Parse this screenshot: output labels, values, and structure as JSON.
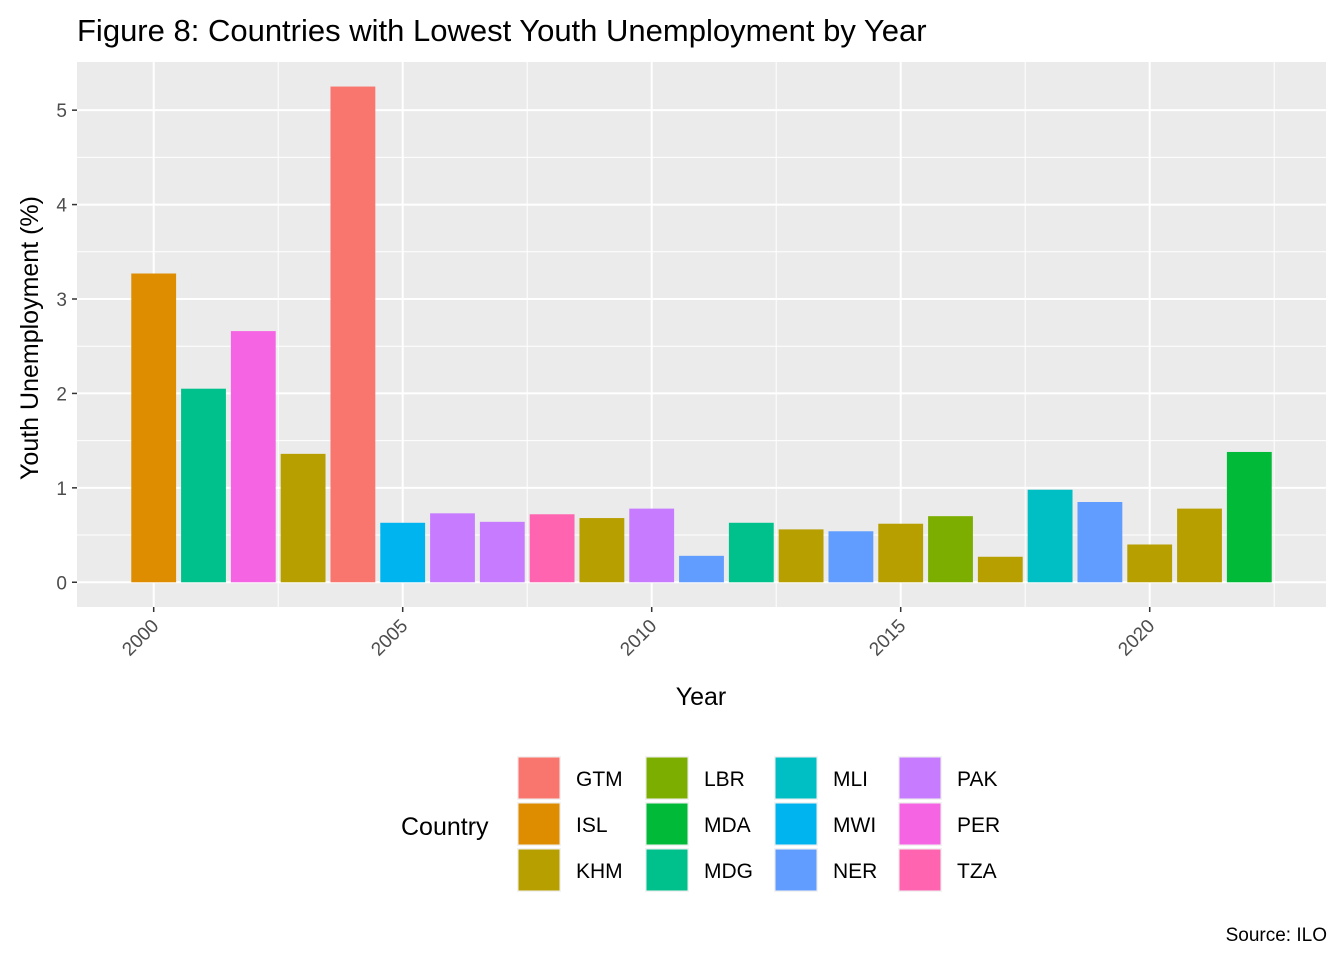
{
  "chart_data": {
    "type": "bar",
    "title": "Figure 8: Countries with Lowest Youth Unemployment by Year",
    "xlabel": "Year",
    "ylabel": "Youth Unemployment (%)",
    "caption": "Source: ILO",
    "xlim": [
      1998.46,
      2023.54
    ],
    "ylim": [
      -0.262,
      5.51
    ],
    "x_ticks": [
      2000,
      2005,
      2010,
      2015,
      2020
    ],
    "y_ticks": [
      0,
      1,
      2,
      3,
      4,
      5
    ],
    "grid": true,
    "legend_title": "Country",
    "legend_position": "bottom",
    "legend": [
      {
        "code": "GTM",
        "color": "#F8766D"
      },
      {
        "code": "ISL",
        "color": "#DE8C00"
      },
      {
        "code": "KHM",
        "color": "#B79F00"
      },
      {
        "code": "LBR",
        "color": "#7CAE00"
      },
      {
        "code": "MDA",
        "color": "#00BA38"
      },
      {
        "code": "MDG",
        "color": "#00C08B"
      },
      {
        "code": "MLI",
        "color": "#00BFC4"
      },
      {
        "code": "MWI",
        "color": "#00B4F0"
      },
      {
        "code": "NER",
        "color": "#619CFF"
      },
      {
        "code": "PAK",
        "color": "#C77CFF"
      },
      {
        "code": "PER",
        "color": "#F564E3"
      },
      {
        "code": "TZA",
        "color": "#FF64B0"
      }
    ],
    "bars": [
      {
        "year": 2000,
        "country": "ISL",
        "value": 3.27
      },
      {
        "year": 2001,
        "country": "MDG",
        "value": 2.05
      },
      {
        "year": 2002,
        "country": "PER",
        "value": 2.66
      },
      {
        "year": 2003,
        "country": "KHM",
        "value": 1.36
      },
      {
        "year": 2004,
        "country": "GTM",
        "value": 5.25
      },
      {
        "year": 2005,
        "country": "MWI",
        "value": 0.63
      },
      {
        "year": 2006,
        "country": "PAK",
        "value": 0.73
      },
      {
        "year": 2007,
        "country": "PAK",
        "value": 0.64
      },
      {
        "year": 2008,
        "country": "TZA",
        "value": 0.72
      },
      {
        "year": 2009,
        "country": "KHM",
        "value": 0.68
      },
      {
        "year": 2010,
        "country": "PAK",
        "value": 0.78
      },
      {
        "year": 2011,
        "country": "NER",
        "value": 0.28
      },
      {
        "year": 2012,
        "country": "MDG",
        "value": 0.63
      },
      {
        "year": 2013,
        "country": "KHM",
        "value": 0.56
      },
      {
        "year": 2014,
        "country": "NER",
        "value": 0.54
      },
      {
        "year": 2015,
        "country": "KHM",
        "value": 0.62
      },
      {
        "year": 2016,
        "country": "LBR",
        "value": 0.7
      },
      {
        "year": 2017,
        "country": "KHM",
        "value": 0.27
      },
      {
        "year": 2018,
        "country": "MLI",
        "value": 0.98
      },
      {
        "year": 2019,
        "country": "NER",
        "value": 0.85
      },
      {
        "year": 2020,
        "country": "KHM",
        "value": 0.4
      },
      {
        "year": 2021,
        "country": "KHM",
        "value": 0.78
      },
      {
        "year": 2022,
        "country": "MDA",
        "value": 1.38
      }
    ]
  }
}
